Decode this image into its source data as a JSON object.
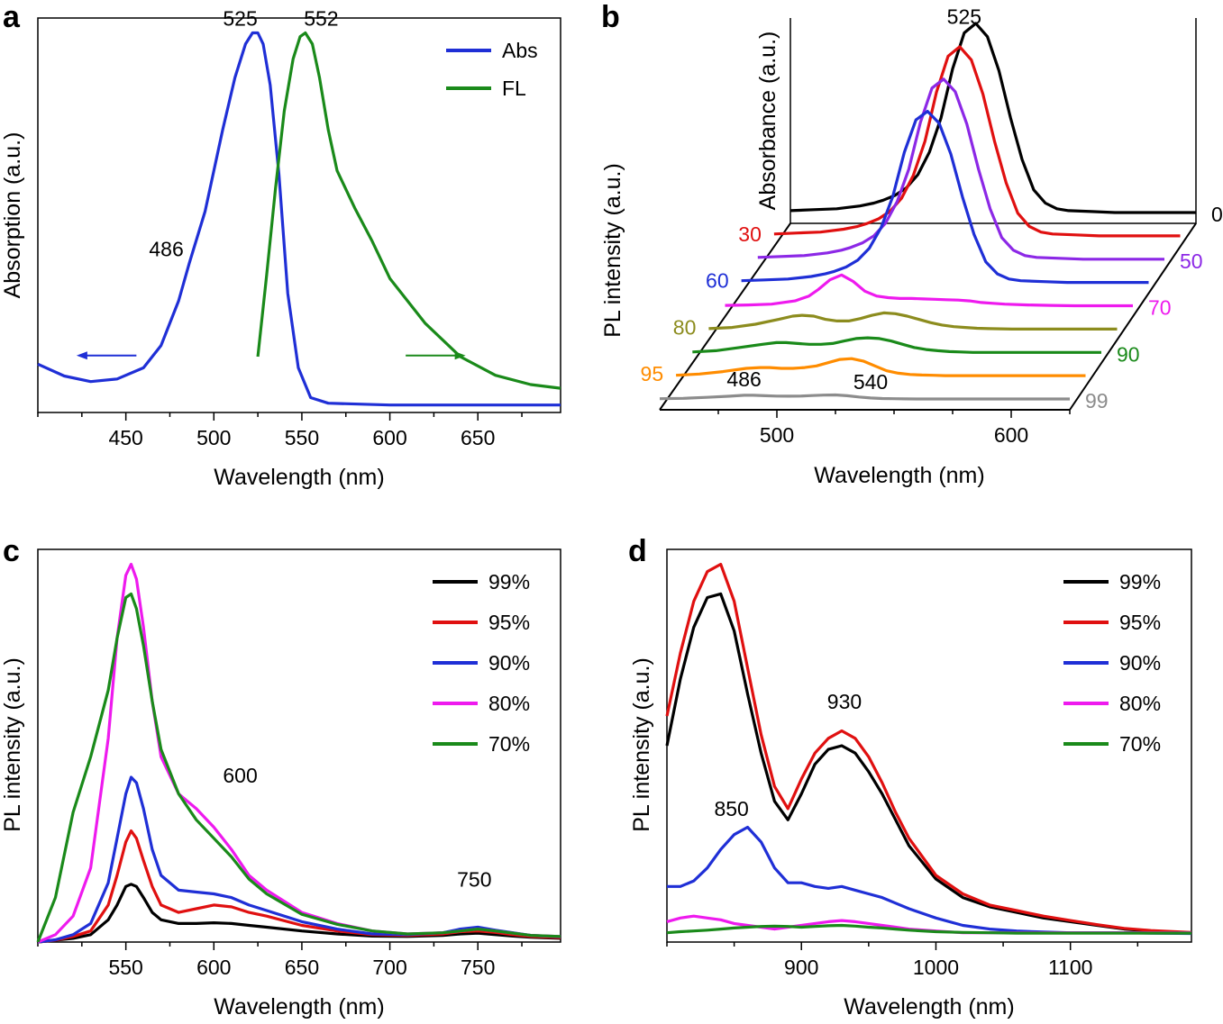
{
  "chart_data": [
    {
      "panel": "a",
      "type": "line",
      "xlabel": "Wavelength (nm)",
      "ylabel": "Absorption (a.u.)",
      "xlim": [
        400,
        697
      ],
      "ylim": [
        0,
        1.06
      ],
      "xticks": [
        "450",
        "500",
        "550",
        "600",
        "650"
      ],
      "legend": "top-right",
      "annotations": [
        {
          "text": "525",
          "x": 515,
          "y": 1.04
        },
        {
          "text": "552",
          "x": 561,
          "y": 1.04
        },
        {
          "text": "486",
          "x": 473,
          "y": 0.42
        }
      ],
      "arrows": [
        {
          "color": "#1f2fd6",
          "from": 456,
          "to": 424,
          "y": 0.153
        },
        {
          "color": "#1a8a1a",
          "from": 609,
          "to": 641,
          "y": 0.153
        }
      ],
      "series": [
        {
          "name": "Abs",
          "color": "#1f2fd6",
          "x": [
            400,
            415,
            430,
            445,
            460,
            470,
            480,
            486,
            495,
            505,
            512,
            518,
            522,
            525,
            528,
            532,
            537,
            542,
            548,
            555,
            565,
            600,
            650,
            697
          ],
          "y": [
            0.13,
            0.098,
            0.083,
            0.09,
            0.12,
            0.18,
            0.3,
            0.4,
            0.54,
            0.76,
            0.9,
            0.99,
            1.02,
            1.02,
            0.99,
            0.88,
            0.64,
            0.32,
            0.12,
            0.04,
            0.025,
            0.02,
            0.02,
            0.02
          ]
        },
        {
          "name": "FL",
          "color": "#1a8a1a",
          "x": [
            525,
            530,
            535,
            540,
            545,
            549,
            552,
            556,
            560,
            565,
            570,
            580,
            590,
            600,
            620,
            640,
            660,
            680,
            697
          ],
          "y": [
            0.15,
            0.37,
            0.6,
            0.81,
            0.95,
            1.01,
            1.02,
            0.99,
            0.9,
            0.76,
            0.65,
            0.55,
            0.46,
            0.36,
            0.24,
            0.15,
            0.1,
            0.075,
            0.065
          ]
        }
      ]
    },
    {
      "panel": "b",
      "type": "line",
      "style": "3d-waterfall",
      "xlabel": "Wavelength (nm)",
      "ylabel": "PL intensity (a.u.)",
      "zlabel": "Absorbance (a.u.)",
      "xlim": [
        450,
        625
      ],
      "xticks": [
        "500",
        "600"
      ],
      "annotations": [
        {
          "text": "525",
          "x": 525,
          "series": "0"
        },
        {
          "text": "486",
          "x": 486,
          "series": "99"
        },
        {
          "text": "540",
          "x": 540,
          "series": "99"
        }
      ],
      "x": [
        450,
        460,
        470,
        480,
        486,
        490,
        495,
        500,
        505,
        510,
        515,
        520,
        525,
        530,
        535,
        540,
        545,
        550,
        555,
        560,
        565,
        570,
        580,
        590,
        600,
        610,
        625
      ],
      "series": [
        {
          "name": "0",
          "color": "#000000",
          "label_side": "right",
          "y": [
            0.01,
            0.015,
            0.02,
            0.035,
            0.05,
            0.065,
            0.09,
            0.13,
            0.2,
            0.32,
            0.5,
            0.76,
            0.95,
            1.0,
            0.93,
            0.75,
            0.5,
            0.28,
            0.12,
            0.05,
            0.02,
            0.01,
            0.005,
            0,
            0,
            0,
            0
          ]
        },
        {
          "name": "30",
          "color": "#e01010",
          "label_side": "left",
          "y": [
            0.01,
            0.015,
            0.02,
            0.035,
            0.05,
            0.065,
            0.09,
            0.13,
            0.2,
            0.32,
            0.5,
            0.76,
            0.95,
            1.0,
            0.93,
            0.75,
            0.5,
            0.28,
            0.12,
            0.05,
            0.02,
            0.01,
            0.005,
            0,
            0,
            0,
            0
          ]
        },
        {
          "name": "50",
          "color": "#8c28e6",
          "label_side": "right",
          "y": [
            0.01,
            0.015,
            0.02,
            0.035,
            0.05,
            0.065,
            0.09,
            0.13,
            0.2,
            0.32,
            0.5,
            0.76,
            0.95,
            1.0,
            0.93,
            0.75,
            0.5,
            0.28,
            0.12,
            0.05,
            0.02,
            0.01,
            0.005,
            0,
            0,
            0,
            0
          ]
        },
        {
          "name": "60",
          "color": "#1f2fd6",
          "label_side": "left",
          "y": [
            0.01,
            0.015,
            0.02,
            0.035,
            0.05,
            0.065,
            0.09,
            0.13,
            0.2,
            0.32,
            0.5,
            0.76,
            0.95,
            1.0,
            0.93,
            0.75,
            0.5,
            0.28,
            0.12,
            0.05,
            0.02,
            0.01,
            0.005,
            0,
            0,
            0,
            0
          ]
        },
        {
          "name": "70",
          "color": "#ee1aee",
          "label_side": "right",
          "y": [
            0.005,
            0.01,
            0.02,
            0.06,
            0.12,
            0.2,
            0.32,
            0.38,
            0.3,
            0.18,
            0.12,
            0.1,
            0.09,
            0.09,
            0.085,
            0.08,
            0.075,
            0.07,
            0.06,
            0.04,
            0.03,
            0.02,
            0.01,
            0.005,
            0,
            0,
            0
          ]
        },
        {
          "name": "80",
          "color": "#8c8c1e",
          "label_side": "left",
          "y": [
            0.005,
            0.02,
            0.06,
            0.12,
            0.16,
            0.17,
            0.16,
            0.12,
            0.1,
            0.1,
            0.13,
            0.17,
            0.2,
            0.19,
            0.16,
            0.12,
            0.08,
            0.05,
            0.03,
            0.02,
            0.01,
            0.005,
            0,
            0,
            0,
            0,
            0
          ]
        },
        {
          "name": "90",
          "color": "#1a8a1a",
          "label_side": "right",
          "y": [
            0.005,
            0.02,
            0.06,
            0.1,
            0.12,
            0.12,
            0.11,
            0.1,
            0.1,
            0.11,
            0.14,
            0.17,
            0.18,
            0.17,
            0.14,
            0.1,
            0.06,
            0.035,
            0.02,
            0.01,
            0.005,
            0,
            0,
            0,
            0,
            0,
            0
          ]
        },
        {
          "name": "95",
          "color": "#ff8c00",
          "label_side": "left",
          "y": [
            0.005,
            0.02,
            0.05,
            0.09,
            0.1,
            0.1,
            0.09,
            0.09,
            0.1,
            0.12,
            0.16,
            0.2,
            0.21,
            0.18,
            0.12,
            0.06,
            0.03,
            0.015,
            0.008,
            0.005,
            0,
            0,
            0,
            0,
            0,
            0,
            0
          ]
        },
        {
          "name": "99",
          "color": "#8c8c8c",
          "label_side": "right",
          "y": [
            0.003,
            0.008,
            0.02,
            0.035,
            0.045,
            0.045,
            0.04,
            0.036,
            0.035,
            0.036,
            0.042,
            0.048,
            0.05,
            0.04,
            0.025,
            0.012,
            0.006,
            0.003,
            0.001,
            0,
            0,
            0,
            0,
            0,
            0,
            0,
            0
          ]
        }
      ]
    },
    {
      "panel": "c",
      "type": "line",
      "xlabel": "Wavelength (nm)",
      "ylabel": "PL intensity (a.u.)",
      "xlim": [
        500,
        797
      ],
      "ylim": [
        0,
        1.06
      ],
      "xticks": [
        "550",
        "600",
        "650",
        "700",
        "750"
      ],
      "legend": "top-right",
      "annotations": [
        {
          "text": "600",
          "x": 615,
          "y": 0.43
        },
        {
          "text": "750",
          "x": 748,
          "y": 0.15
        }
      ],
      "x": [
        500,
        510,
        520,
        530,
        540,
        545,
        550,
        553,
        556,
        560,
        565,
        570,
        580,
        590,
        600,
        610,
        620,
        630,
        650,
        670,
        690,
        710,
        730,
        740,
        750,
        760,
        770,
        780,
        797
      ],
      "series": [
        {
          "name": "99%",
          "color": "#000000",
          "y": [
            0,
            0.005,
            0.01,
            0.02,
            0.06,
            0.1,
            0.15,
            0.156,
            0.15,
            0.12,
            0.08,
            0.06,
            0.05,
            0.05,
            0.052,
            0.05,
            0.045,
            0.04,
            0.03,
            0.022,
            0.016,
            0.015,
            0.018,
            0.022,
            0.024,
            0.02,
            0.016,
            0.013,
            0.01
          ]
        },
        {
          "name": "95%",
          "color": "#e01010",
          "y": [
            0,
            0.005,
            0.015,
            0.03,
            0.1,
            0.18,
            0.27,
            0.3,
            0.28,
            0.22,
            0.15,
            0.1,
            0.08,
            0.09,
            0.1,
            0.095,
            0.08,
            0.07,
            0.045,
            0.03,
            0.02,
            0.018,
            0.022,
            0.028,
            0.03,
            0.026,
            0.02,
            0.015,
            0.012
          ]
        },
        {
          "name": "90%",
          "color": "#1f2fd6",
          "y": [
            0,
            0.006,
            0.02,
            0.05,
            0.16,
            0.28,
            0.4,
            0.445,
            0.43,
            0.36,
            0.25,
            0.18,
            0.14,
            0.135,
            0.13,
            0.12,
            0.1,
            0.085,
            0.055,
            0.035,
            0.022,
            0.02,
            0.025,
            0.035,
            0.04,
            0.032,
            0.025,
            0.018,
            0.014
          ]
        },
        {
          "name": "80%",
          "color": "#ee1aee",
          "y": [
            0,
            0.02,
            0.07,
            0.2,
            0.55,
            0.82,
            0.99,
            1.02,
            0.98,
            0.85,
            0.65,
            0.5,
            0.4,
            0.36,
            0.31,
            0.25,
            0.18,
            0.14,
            0.08,
            0.05,
            0.03,
            0.022,
            0.025,
            0.03,
            0.035,
            0.03,
            0.024,
            0.018,
            0.015
          ]
        },
        {
          "name": "70%",
          "color": "#1a8a1a",
          "y": [
            0,
            0.12,
            0.35,
            0.5,
            0.68,
            0.82,
            0.93,
            0.94,
            0.9,
            0.8,
            0.65,
            0.52,
            0.4,
            0.33,
            0.28,
            0.23,
            0.17,
            0.13,
            0.075,
            0.048,
            0.03,
            0.022,
            0.025,
            0.03,
            0.035,
            0.03,
            0.024,
            0.018,
            0.015
          ]
        }
      ]
    },
    {
      "panel": "d",
      "type": "line",
      "xlabel": "Wavelength (nm)",
      "ylabel": "PL intensity (a.u.)",
      "xlim": [
        800,
        1190
      ],
      "ylim": [
        0,
        1.06
      ],
      "xticks": [
        "900",
        "1000",
        "1100"
      ],
      "legend": "top-right",
      "annotations": [
        {
          "text": "930",
          "x": 932,
          "y": 0.63
        },
        {
          "text": "850",
          "x": 848,
          "y": 0.34
        }
      ],
      "x": [
        800,
        810,
        820,
        830,
        840,
        850,
        860,
        870,
        880,
        890,
        900,
        910,
        920,
        930,
        940,
        950,
        960,
        970,
        980,
        1000,
        1020,
        1040,
        1060,
        1080,
        1100,
        1120,
        1140,
        1160,
        1190
      ],
      "series": [
        {
          "name": "99%",
          "color": "#000000",
          "y": [
            0.53,
            0.71,
            0.85,
            0.93,
            0.94,
            0.84,
            0.67,
            0.51,
            0.38,
            0.33,
            0.4,
            0.48,
            0.52,
            0.53,
            0.51,
            0.46,
            0.4,
            0.33,
            0.26,
            0.17,
            0.12,
            0.095,
            0.08,
            0.065,
            0.055,
            0.045,
            0.035,
            0.03,
            0.025
          ]
        },
        {
          "name": "95%",
          "color": "#e01010",
          "y": [
            0.61,
            0.78,
            0.92,
            1.0,
            1.02,
            0.92,
            0.74,
            0.56,
            0.42,
            0.36,
            0.44,
            0.51,
            0.55,
            0.57,
            0.55,
            0.5,
            0.43,
            0.35,
            0.28,
            0.18,
            0.13,
            0.1,
            0.085,
            0.07,
            0.058,
            0.047,
            0.037,
            0.031,
            0.026
          ]
        },
        {
          "name": "90%",
          "color": "#1f2fd6",
          "y": [
            0.15,
            0.15,
            0.165,
            0.2,
            0.25,
            0.29,
            0.31,
            0.27,
            0.2,
            0.16,
            0.16,
            0.15,
            0.145,
            0.15,
            0.14,
            0.13,
            0.12,
            0.105,
            0.09,
            0.065,
            0.045,
            0.035,
            0.03,
            0.027,
            0.025,
            0.025,
            0.025,
            0.024,
            0.023
          ]
        },
        {
          "name": "80%",
          "color": "#ee1aee",
          "y": [
            0.055,
            0.065,
            0.07,
            0.065,
            0.06,
            0.05,
            0.045,
            0.04,
            0.035,
            0.04,
            0.045,
            0.05,
            0.055,
            0.058,
            0.055,
            0.05,
            0.045,
            0.04,
            0.035,
            0.03,
            0.025,
            0.025,
            0.025,
            0.025,
            0.025,
            0.025,
            0.025,
            0.025,
            0.025
          ]
        },
        {
          "name": "70%",
          "color": "#1a8a1a",
          "y": [
            0.025,
            0.028,
            0.03,
            0.032,
            0.035,
            0.038,
            0.04,
            0.042,
            0.043,
            0.042,
            0.04,
            0.042,
            0.044,
            0.045,
            0.043,
            0.04,
            0.038,
            0.035,
            0.032,
            0.028,
            0.026,
            0.025,
            0.024,
            0.024,
            0.024,
            0.024,
            0.024,
            0.024,
            0.024
          ]
        }
      ]
    }
  ]
}
